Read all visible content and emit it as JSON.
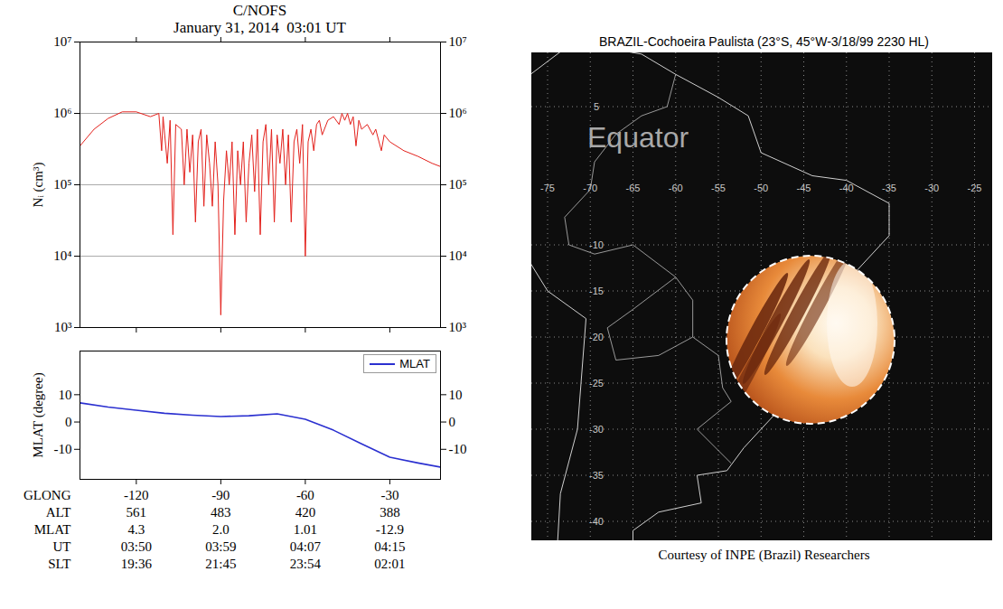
{
  "chart_data": [
    {
      "type": "line",
      "title": "C/NOFS",
      "subtitle": "January 31, 2014  03:01 UT",
      "y_label": "Nᵢ (cm³)",
      "log": "y",
      "grid": true,
      "tick_labels": "y",
      "color": "#e3211c",
      "xlim": [
        -140,
        -12
      ],
      "xticks": [
        -120,
        -90,
        -60,
        -30
      ],
      "ylim": [
        1000,
        10000000
      ],
      "yticks": [
        {
          "value": 1000,
          "label": "10³"
        },
        {
          "value": 10000,
          "label": "10⁴"
        },
        {
          "value": 100000,
          "label": "10⁵"
        },
        {
          "value": 1000000,
          "label": "10⁶"
        },
        {
          "value": 10000000,
          "label": "10⁷"
        }
      ],
      "x": [
        -140,
        -135,
        -130,
        -125,
        -120,
        -115,
        -112,
        -111,
        -110.5,
        -109,
        -108,
        -107,
        -106,
        -104,
        -103,
        -102,
        -101,
        -100,
        -99,
        -98,
        -97,
        -96,
        -95,
        -94,
        -93,
        -92,
        -91,
        -90,
        -89,
        -88,
        -87,
        -86,
        -85,
        -84,
        -83,
        -82,
        -81,
        -80,
        -79,
        -78,
        -77,
        -76,
        -75,
        -74,
        -73,
        -72,
        -71,
        -70,
        -69,
        -68,
        -67,
        -66,
        -65,
        -64,
        -63,
        -62,
        -61,
        -60,
        -59,
        -58,
        -57,
        -56,
        -55,
        -54,
        -52,
        -50,
        -48,
        -47,
        -46,
        -45,
        -44,
        -43,
        -42,
        -41,
        -40,
        -38,
        -36,
        -35,
        -33,
        -32,
        -30,
        -25,
        -20,
        -15,
        -12
      ],
      "values": [
        350000,
        600000,
        850000,
        1050000,
        1050000,
        900000,
        1000000,
        300000,
        900000,
        200000,
        800000,
        20000,
        700000,
        600000,
        100000,
        600000,
        150000,
        500000,
        30000,
        400000,
        600000,
        50000,
        500000,
        200000,
        50000,
        400000,
        100000,
        1500,
        60000,
        300000,
        100000,
        400000,
        20000,
        300000,
        100000,
        400000,
        30000,
        200000,
        500000,
        80000,
        600000,
        20000,
        400000,
        700000,
        100000,
        600000,
        30000,
        500000,
        200000,
        600000,
        100000,
        500000,
        30000,
        400000,
        600000,
        200000,
        700000,
        10000,
        400000,
        600000,
        300000,
        700000,
        800000,
        500000,
        800000,
        900000,
        700000,
        1000000,
        800000,
        1000000,
        700000,
        900000,
        350000,
        800000,
        600000,
        700000,
        500000,
        600000,
        300000,
        500000,
        400000,
        300000,
        250000,
        200000,
        180000
      ]
    },
    {
      "type": "line",
      "y_label": "MLAT (degree)",
      "legend": "top-right",
      "tick_labels": "y",
      "xlim": [
        -140,
        -12
      ],
      "xticks": [
        -120,
        -90,
        -60,
        -30
      ],
      "ylim": [
        -21,
        26
      ],
      "yticks": [
        -10,
        0,
        10
      ],
      "x": [
        -140,
        -130,
        -120,
        -110,
        -100,
        -90,
        -80,
        -70,
        -60,
        -50,
        -40,
        -30,
        -20,
        -12
      ],
      "series": [
        {
          "name": "MLAT",
          "color": "#2b30d0",
          "values": [
            7,
            5.5,
            4.3,
            3.2,
            2.5,
            2.0,
            2.3,
            3.0,
            1.01,
            -3,
            -8,
            -12.9,
            -15,
            -16.5
          ]
        }
      ],
      "table": {
        "rows": [
          [
            "GLONG",
            "-120",
            "-90",
            "-60",
            "-30"
          ],
          [
            "ALT",
            "561",
            "483",
            "420",
            "388"
          ],
          [
            "MLAT",
            "4.3",
            "2.0",
            "1.01",
            "-12.9"
          ],
          [
            "UT",
            "03:50",
            "03:59",
            "04:07",
            "04:15"
          ],
          [
            "SLT",
            "19:36",
            "21:45",
            "23:54",
            "02:01"
          ]
        ]
      }
    }
  ],
  "map": {
    "title": "BRAZIL-Cochoeira Paulista (23°S, 45°W-3/18/99 2230 HL)",
    "label": "Equator",
    "longitudes": [
      -75,
      -70,
      -65,
      -60,
      -55,
      -50,
      -45,
      -40,
      -35,
      -30,
      -25
    ],
    "latitudes": [
      5,
      -10,
      -15,
      -20,
      -25,
      -30,
      -35,
      -40
    ],
    "caption": "Courtesy of INPE (Brazil) Researchers"
  }
}
